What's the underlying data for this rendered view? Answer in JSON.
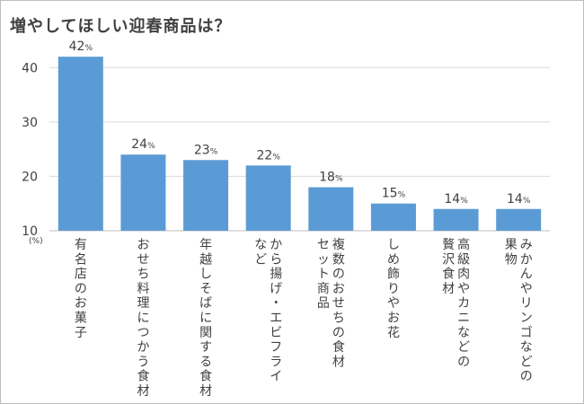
{
  "chart_data": {
    "type": "bar",
    "title": "増やしてほしい迎春商品は？",
    "ylabel": "(%)",
    "data_label_unit": "%",
    "categories": [
      [
        "有名店のお菓子"
      ],
      [
        "おせち料理につかう食材"
      ],
      [
        "年越しそばに関する食材"
      ],
      [
        "から揚げ・エビフライ",
        "など"
      ],
      [
        "複数のおせちの食材",
        "セット商品"
      ],
      [
        "しめ飾りやお花"
      ],
      [
        "高級肉やカニなどの",
        "贅沢食材"
      ],
      [
        "みかんやリンゴなどの",
        "果物"
      ]
    ],
    "values": [
      42,
      24,
      23,
      22,
      18,
      15,
      14,
      14
    ],
    "ylim": [
      10,
      45
    ],
    "yticks": [
      10,
      20,
      30,
      40
    ],
    "grid": true,
    "legend": "none",
    "bar_color": "#5b9bd5",
    "grid_color": "#d9d9d9",
    "text_color": "#404040"
  }
}
